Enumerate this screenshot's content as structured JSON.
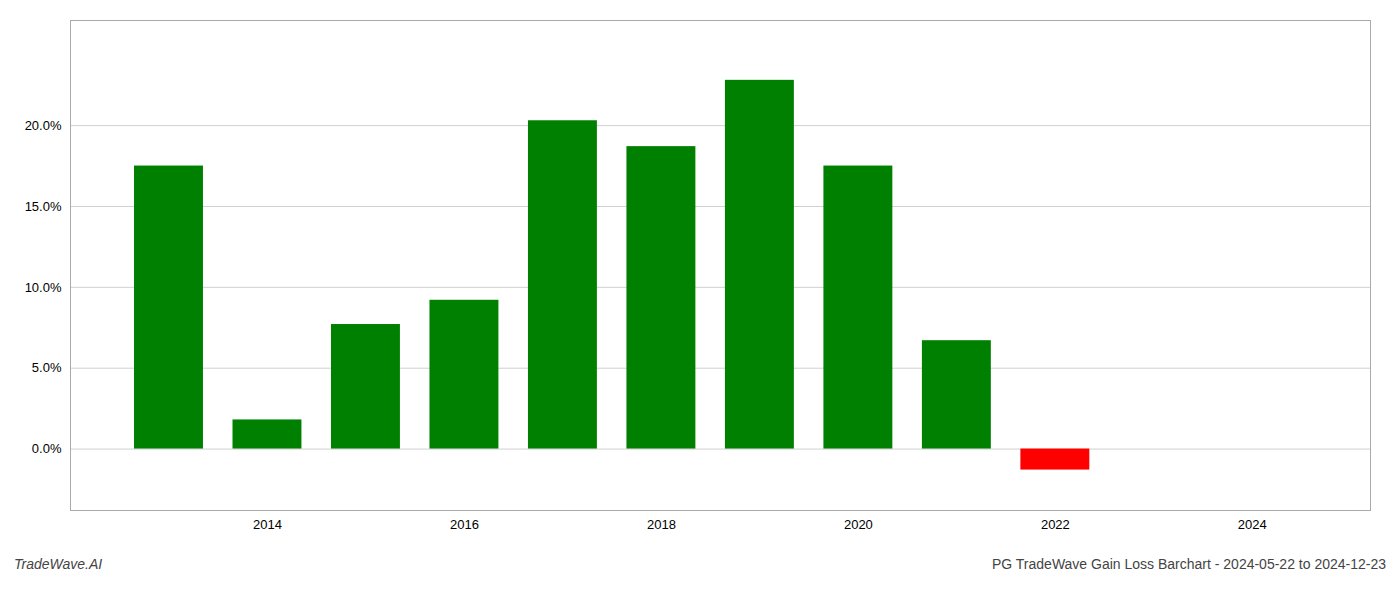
{
  "chart_data": {
    "type": "bar",
    "x": [
      2013,
      2014,
      2015,
      2016,
      2017,
      2018,
      2019,
      2020,
      2021,
      2022,
      2023
    ],
    "values": [
      0.175,
      0.018,
      0.077,
      0.092,
      0.203,
      0.187,
      0.228,
      0.175,
      0.067,
      -0.013,
      0.0
    ],
    "colors": [
      "#008000",
      "#008000",
      "#008000",
      "#008000",
      "#008000",
      "#008000",
      "#008000",
      "#008000",
      "#008000",
      "#ff0000",
      null
    ],
    "xlim": [
      2012.0,
      2025.2
    ],
    "xticks": [
      2014,
      2016,
      2018,
      2020,
      2022,
      2024
    ],
    "ylim": [
      -0.038,
      0.265
    ],
    "yticks": [
      {
        "value": 0.0,
        "label": "0.0%"
      },
      {
        "value": 0.05,
        "label": "5.0%"
      },
      {
        "value": 0.1,
        "label": "10.0%"
      },
      {
        "value": 0.15,
        "label": "15.0%"
      },
      {
        "value": 0.2,
        "label": "20.0%"
      }
    ],
    "grid": true,
    "annotations": [
      "TradeWave.AI",
      "PG TradeWave Gain Loss Barchart - 2024-05-22 to 2024-12-23"
    ]
  }
}
